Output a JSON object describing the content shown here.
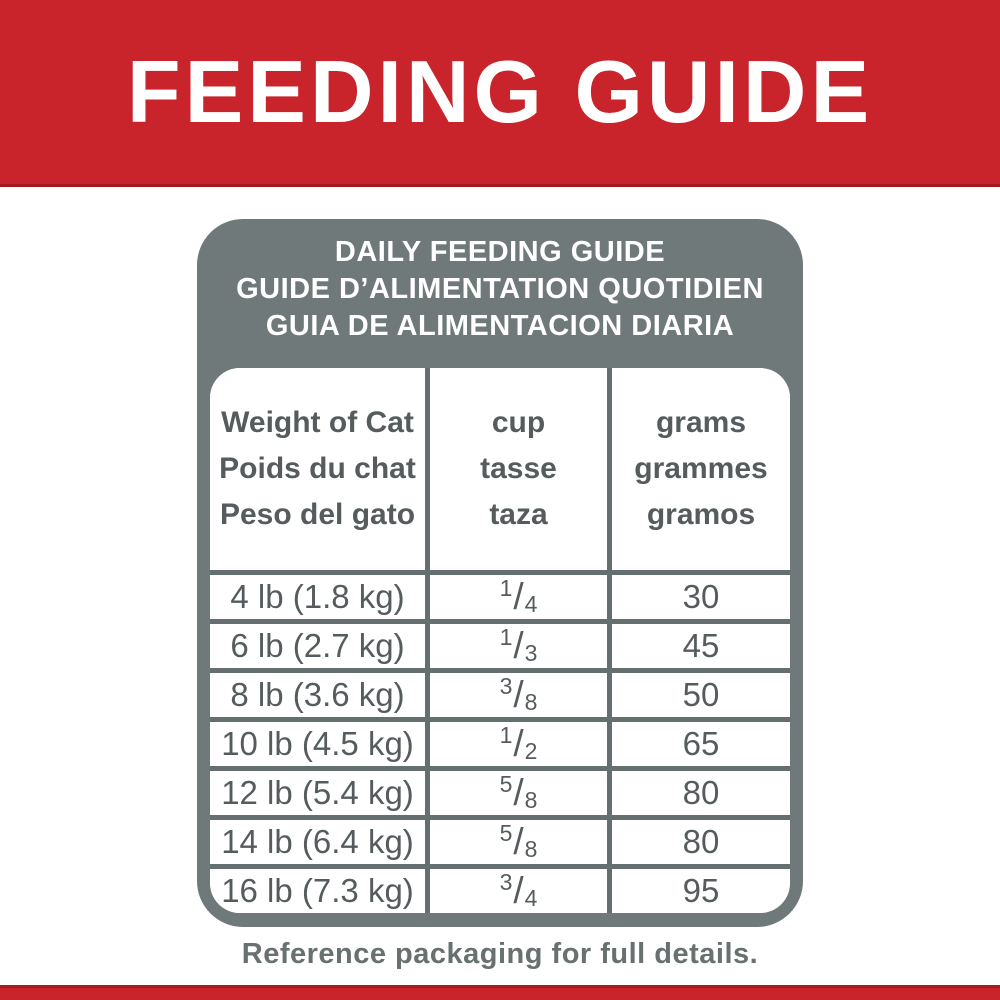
{
  "colors": {
    "brand-red": "#c9242b",
    "dark-red": "#9e1d22",
    "box-gray": "#707979",
    "line-gray": "#666f6f",
    "text-gray": "#565c5e",
    "footer-gray": "#687070"
  },
  "banner": {
    "title": "FEEDING GUIDE"
  },
  "card": {
    "title_lines": [
      "DAILY FEEDING GUIDE",
      "GUIDE D’ALIMENTATION QUOTIDIEN",
      "GUIA DE ALIMENTACION DIARIA"
    ]
  },
  "chart_data": {
    "type": "table",
    "title": "DAILY FEEDING GUIDE",
    "columns": [
      "Weight of Cat",
      "cup",
      "grams"
    ],
    "rows": [
      [
        "4 lb (1.8 kg)",
        "1/4",
        30
      ],
      [
        "6 lb (2.7 kg)",
        "1/3",
        45
      ],
      [
        "8 lb (3.6 kg)",
        "3/8",
        50
      ],
      [
        "10 lb (4.5 kg)",
        "1/2",
        65
      ],
      [
        "12 lb (5.4 kg)",
        "5/8",
        80
      ],
      [
        "14 lb (6.4 kg)",
        "5/8",
        80
      ],
      [
        "16 lb (7.3 kg)",
        "3/4",
        95
      ]
    ]
  },
  "table": {
    "columns": [
      {
        "lines": [
          "Weight of Cat",
          "Poids du chat",
          "Peso del gato"
        ]
      },
      {
        "lines": [
          "cup",
          "tasse",
          "taza"
        ]
      },
      {
        "lines": [
          "grams",
          "grammes",
          "gramos"
        ]
      }
    ],
    "rows": [
      {
        "weight": "4 lb (1.8 kg)",
        "cup": "1/4",
        "grams": "30"
      },
      {
        "weight": "6 lb (2.7 kg)",
        "cup": "1/3",
        "grams": "45"
      },
      {
        "weight": "8 lb (3.6 kg)",
        "cup": "3/8",
        "grams": "50"
      },
      {
        "weight": "10 lb (4.5 kg)",
        "cup": "1/2",
        "grams": "65"
      },
      {
        "weight": "12 lb (5.4 kg)",
        "cup": "5/8",
        "grams": "80"
      },
      {
        "weight": "14 lb (6.4 kg)",
        "cup": "5/8",
        "grams": "80"
      },
      {
        "weight": "16 lb (7.3 kg)",
        "cup": "3/4",
        "grams": "95"
      }
    ]
  },
  "footer": {
    "note": "Reference packaging for full details."
  }
}
